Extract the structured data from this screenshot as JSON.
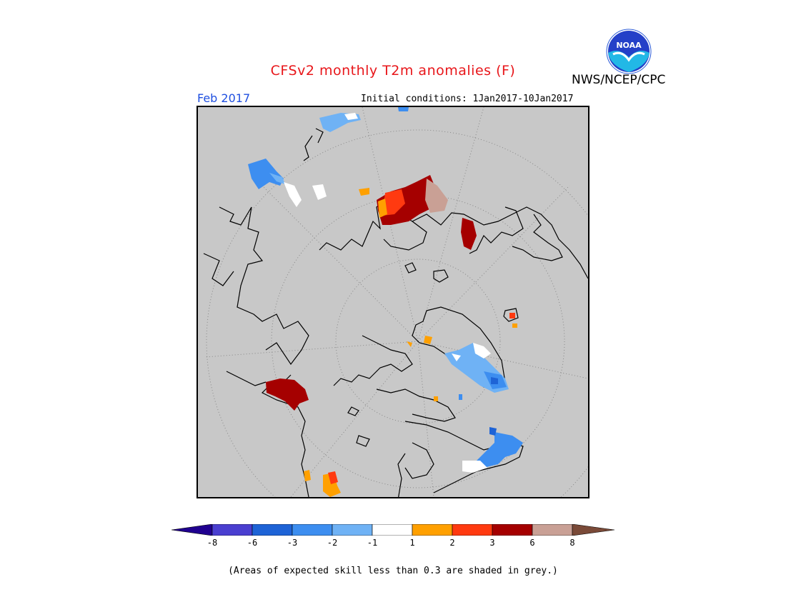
{
  "header": {
    "title": "CFSv2 monthly T2m anomalies (F)",
    "agency": "NWS/NCEP/CPC",
    "logo_text": "NOAA",
    "month": "Feb 2017",
    "initial_conditions": "Initial conditions: 1Jan2017-10Jan2017"
  },
  "map": {
    "projection": "north polar stereographic",
    "background_color": "#c8c8c8",
    "coastline_color": "#000000"
  },
  "legend": {
    "colors": [
      "#200090",
      "#4a3fd0",
      "#1e63d6",
      "#3d8ef0",
      "#6fb2f5",
      "#ffffff",
      "#ffa000",
      "#ff3a10",
      "#a50000",
      "#c9a095",
      "#7a4a38"
    ],
    "ticks": [
      "-8",
      "-6",
      "-3",
      "-2",
      "-1",
      "1",
      "2",
      "3",
      "6",
      "8"
    ]
  },
  "footnote": "(Areas of expected skill less than 0.3 are shaded in grey.)"
}
